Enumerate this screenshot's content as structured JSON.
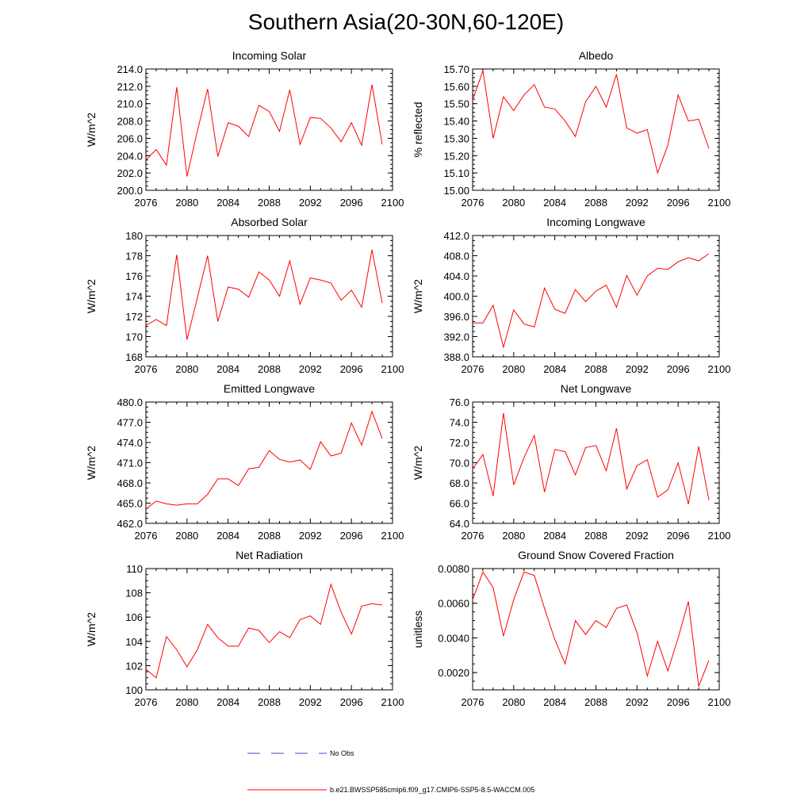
{
  "title": "Southern Asia(20-30N,60-120E)",
  "colors": {
    "model_line": "#ff0000",
    "obs_line": "#4444cc",
    "axis": "#000000"
  },
  "legend": {
    "obs_label": "No Obs",
    "model_label": "b.e21.BWSSP585cmip6.f09_g17.CMIP6-SSP5-8.5-WACCM.005"
  },
  "chart_data": [
    {
      "type": "line",
      "title": "Incoming Solar",
      "ylabel": "W/m^2",
      "xlim": [
        2076,
        2100
      ],
      "ylim": [
        200.0,
        214.0
      ],
      "x_ticks": [
        "2076",
        "2080",
        "2084",
        "2088",
        "2092",
        "2096",
        "2100"
      ],
      "y_ticks": [
        "200.0",
        "202.0",
        "204.0",
        "206.0",
        "208.0",
        "210.0",
        "212.0",
        "214.0"
      ],
      "x": [
        2076,
        2077,
        2078,
        2079,
        2080,
        2081,
        2082,
        2083,
        2084,
        2085,
        2086,
        2087,
        2088,
        2089,
        2090,
        2091,
        2092,
        2093,
        2094,
        2095,
        2096,
        2097,
        2098,
        2099
      ],
      "series": [
        {
          "values": [
            203.5,
            204.7,
            202.9,
            211.9,
            201.6,
            206.8,
            211.7,
            203.9,
            207.8,
            207.4,
            206.2,
            209.8,
            209.1,
            206.8,
            211.6,
            205.3,
            208.4,
            208.3,
            207.2,
            205.6,
            207.8,
            205.2,
            212.2,
            205.3
          ]
        }
      ]
    },
    {
      "type": "line",
      "title": "Albedo",
      "ylabel": "% reflected",
      "xlim": [
        2076,
        2100
      ],
      "ylim": [
        15.0,
        15.7
      ],
      "x_ticks": [
        "2076",
        "2080",
        "2084",
        "2088",
        "2092",
        "2096",
        "2100"
      ],
      "y_ticks": [
        "15.00",
        "15.10",
        "15.20",
        "15.30",
        "15.40",
        "15.50",
        "15.60",
        "15.70"
      ],
      "x": [
        2076,
        2077,
        2078,
        2079,
        2080,
        2081,
        2082,
        2083,
        2084,
        2085,
        2086,
        2087,
        2088,
        2089,
        2090,
        2091,
        2092,
        2093,
        2094,
        2095,
        2096,
        2097,
        2098,
        2099
      ],
      "series": [
        {
          "values": [
            15.52,
            15.69,
            15.3,
            15.54,
            15.46,
            15.55,
            15.61,
            15.48,
            15.47,
            15.4,
            15.31,
            15.51,
            15.6,
            15.48,
            15.67,
            15.36,
            15.33,
            15.35,
            15.1,
            15.26,
            15.55,
            15.4,
            15.41,
            15.24
          ]
        }
      ]
    },
    {
      "type": "line",
      "title": "Absorbed Solar",
      "ylabel": "W/m^2",
      "xlim": [
        2076,
        2100
      ],
      "ylim": [
        168,
        180
      ],
      "x_ticks": [
        "2076",
        "2080",
        "2084",
        "2088",
        "2092",
        "2096",
        "2100"
      ],
      "y_ticks": [
        "168",
        "170",
        "172",
        "174",
        "176",
        "178",
        "180"
      ],
      "x": [
        2076,
        2077,
        2078,
        2079,
        2080,
        2081,
        2082,
        2083,
        2084,
        2085,
        2086,
        2087,
        2088,
        2089,
        2090,
        2091,
        2092,
        2093,
        2094,
        2095,
        2096,
        2097,
        2098,
        2099
      ],
      "series": [
        {
          "values": [
            171.1,
            171.7,
            171.1,
            178.1,
            169.7,
            173.8,
            178.0,
            171.5,
            174.9,
            174.7,
            173.9,
            176.4,
            175.6,
            174.0,
            177.5,
            173.2,
            175.8,
            175.6,
            175.3,
            173.6,
            174.6,
            172.9,
            178.6,
            173.3
          ]
        }
      ]
    },
    {
      "type": "line",
      "title": "Incoming Longwave",
      "ylabel": "W/m^2",
      "xlim": [
        2076,
        2100
      ],
      "ylim": [
        388.0,
        412.0
      ],
      "x_ticks": [
        "2076",
        "2080",
        "2084",
        "2088",
        "2092",
        "2096",
        "2100"
      ],
      "y_ticks": [
        "388.0",
        "392.0",
        "396.0",
        "400.0",
        "404.0",
        "408.0",
        "412.0"
      ],
      "x": [
        2076,
        2077,
        2078,
        2079,
        2080,
        2081,
        2082,
        2083,
        2084,
        2085,
        2086,
        2087,
        2088,
        2089,
        2090,
        2091,
        2092,
        2093,
        2094,
        2095,
        2096,
        2097,
        2098,
        2099
      ],
      "series": [
        {
          "values": [
            394.7,
            394.7,
            398.2,
            389.9,
            397.3,
            394.5,
            393.9,
            401.6,
            397.4,
            396.6,
            401.3,
            398.9,
            401.0,
            402.2,
            397.8,
            404.1,
            400.2,
            404.0,
            405.5,
            405.3,
            406.8,
            407.6,
            407.0,
            408.4
          ]
        }
      ]
    },
    {
      "type": "line",
      "title": "Emitted Longwave",
      "ylabel": "W/m^2",
      "xlim": [
        2076,
        2100
      ],
      "ylim": [
        462.0,
        480.0
      ],
      "x_ticks": [
        "2076",
        "2080",
        "2084",
        "2088",
        "2092",
        "2096",
        "2100"
      ],
      "y_ticks": [
        "462.0",
        "465.0",
        "468.0",
        "471.0",
        "474.0",
        "477.0",
        "480.0"
      ],
      "x": [
        2076,
        2077,
        2078,
        2079,
        2080,
        2081,
        2082,
        2083,
        2084,
        2085,
        2086,
        2087,
        2088,
        2089,
        2090,
        2091,
        2092,
        2093,
        2094,
        2095,
        2096,
        2097,
        2098,
        2099
      ],
      "series": [
        {
          "values": [
            464.1,
            465.3,
            464.9,
            464.7,
            464.9,
            464.9,
            466.3,
            468.6,
            468.6,
            467.6,
            470.1,
            470.3,
            472.8,
            471.5,
            471.1,
            471.4,
            470.0,
            474.1,
            472.0,
            472.4,
            476.9,
            473.6,
            478.6,
            474.6
          ]
        }
      ]
    },
    {
      "type": "line",
      "title": "Net Longwave",
      "ylabel": "W/m^2",
      "xlim": [
        2076,
        2100
      ],
      "ylim": [
        64.0,
        76.0
      ],
      "x_ticks": [
        "2076",
        "2080",
        "2084",
        "2088",
        "2092",
        "2096",
        "2100"
      ],
      "y_ticks": [
        "64.0",
        "66.0",
        "68.0",
        "70.0",
        "72.0",
        "74.0",
        "76.0"
      ],
      "x": [
        2076,
        2077,
        2078,
        2079,
        2080,
        2081,
        2082,
        2083,
        2084,
        2085,
        2086,
        2087,
        2088,
        2089,
        2090,
        2091,
        2092,
        2093,
        2094,
        2095,
        2096,
        2097,
        2098,
        2099
      ],
      "series": [
        {
          "values": [
            69.4,
            70.8,
            66.7,
            74.9,
            67.8,
            70.5,
            72.7,
            67.1,
            71.3,
            71.1,
            68.8,
            71.5,
            71.7,
            69.2,
            73.4,
            67.4,
            69.7,
            70.3,
            66.6,
            67.3,
            70.0,
            65.9,
            71.6,
            66.3
          ]
        }
      ]
    },
    {
      "type": "line",
      "title": "Net Radiation",
      "ylabel": "W/m^2",
      "xlim": [
        2076,
        2100
      ],
      "ylim": [
        100,
        110
      ],
      "x_ticks": [
        "2076",
        "2080",
        "2084",
        "2088",
        "2092",
        "2096",
        "2100"
      ],
      "y_ticks": [
        "100",
        "102",
        "104",
        "106",
        "108",
        "110"
      ],
      "x": [
        2076,
        2077,
        2078,
        2079,
        2080,
        2081,
        2082,
        2083,
        2084,
        2085,
        2086,
        2087,
        2088,
        2089,
        2090,
        2091,
        2092,
        2093,
        2094,
        2095,
        2096,
        2097,
        2098,
        2099
      ],
      "series": [
        {
          "values": [
            101.7,
            101.0,
            104.4,
            103.3,
            101.9,
            103.3,
            105.4,
            104.3,
            103.6,
            103.6,
            105.1,
            104.9,
            103.9,
            104.8,
            104.3,
            105.8,
            106.1,
            105.4,
            108.7,
            106.4,
            104.6,
            106.9,
            107.1,
            107.0
          ]
        }
      ]
    },
    {
      "type": "line",
      "title": "Ground Snow Covered Fraction",
      "ylabel": "unitless",
      "xlim": [
        2076,
        2100
      ],
      "ylim": [
        0.001,
        0.008
      ],
      "x_ticks": [
        "2076",
        "2080",
        "2084",
        "2088",
        "2092",
        "2096",
        "2100"
      ],
      "y_ticks": [
        "0.0020",
        "0.0040",
        "0.0060",
        "0.0080"
      ],
      "y_tick_values": [
        0.002,
        0.004,
        0.006,
        0.008
      ],
      "x": [
        2076,
        2077,
        2078,
        2079,
        2080,
        2081,
        2082,
        2083,
        2084,
        2085,
        2086,
        2087,
        2088,
        2089,
        2090,
        2091,
        2092,
        2093,
        2094,
        2095,
        2096,
        2097,
        2098,
        2099
      ],
      "series": [
        {
          "values": [
            0.0062,
            0.0078,
            0.0069,
            0.0041,
            0.0062,
            0.0078,
            0.0076,
            0.0057,
            0.0039,
            0.0025,
            0.005,
            0.0042,
            0.005,
            0.0046,
            0.0057,
            0.0059,
            0.0043,
            0.0018,
            0.0038,
            0.0021,
            0.004,
            0.0061,
            0.0012,
            0.0027
          ]
        }
      ]
    }
  ]
}
